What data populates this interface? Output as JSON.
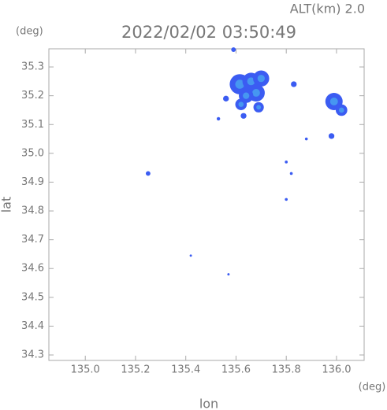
{
  "chart_data": {
    "type": "bubble",
    "title": "2022/02/02 03:50:49",
    "subtitle": "ALT(km)  2.0",
    "y_unit": "(deg)",
    "x_unit": "(deg)",
    "x_label": "lon",
    "y_label": "lat",
    "x": [
      135.59,
      135.615,
      135.66,
      135.7,
      135.68,
      135.64,
      135.62,
      135.69,
      135.83,
      135.99,
      136.02,
      135.98,
      135.25,
      135.42,
      135.57,
      135.8,
      135.8,
      135.82,
      135.88,
      135.53,
      135.63,
      135.56
    ],
    "values": [
      35.36,
      35.24,
      35.25,
      35.26,
      35.21,
      35.2,
      35.17,
      35.16,
      35.24,
      35.18,
      35.15,
      35.06,
      34.93,
      34.645,
      34.58,
      34.84,
      34.97,
      34.93,
      35.05,
      35.12,
      35.13,
      35.19
    ],
    "sizes": [
      0.008,
      0.035,
      0.03,
      0.028,
      0.03,
      0.025,
      0.02,
      0.018,
      0.01,
      0.03,
      0.02,
      0.01,
      0.008,
      0.004,
      0.004,
      0.005,
      0.005,
      0.005,
      0.005,
      0.006,
      0.01,
      0.01
    ],
    "color": "#3b5cf2",
    "highlight": "#4aa6f0",
    "xlim": [
      134.855,
      136.11
    ],
    "ylim": [
      34.281,
      35.363
    ],
    "xticks": [
      {
        "value": 135,
        "label": "135.0"
      },
      135.2,
      135.4,
      135.6,
      135.8,
      {
        "value": 136,
        "label": "136.0"
      }
    ],
    "yticks": [
      34.3,
      34.4,
      34.5,
      34.6,
      34.7,
      34.8,
      34.9,
      {
        "value": 35,
        "label": "35.0"
      },
      35.1,
      35.2,
      35.3
    ]
  }
}
